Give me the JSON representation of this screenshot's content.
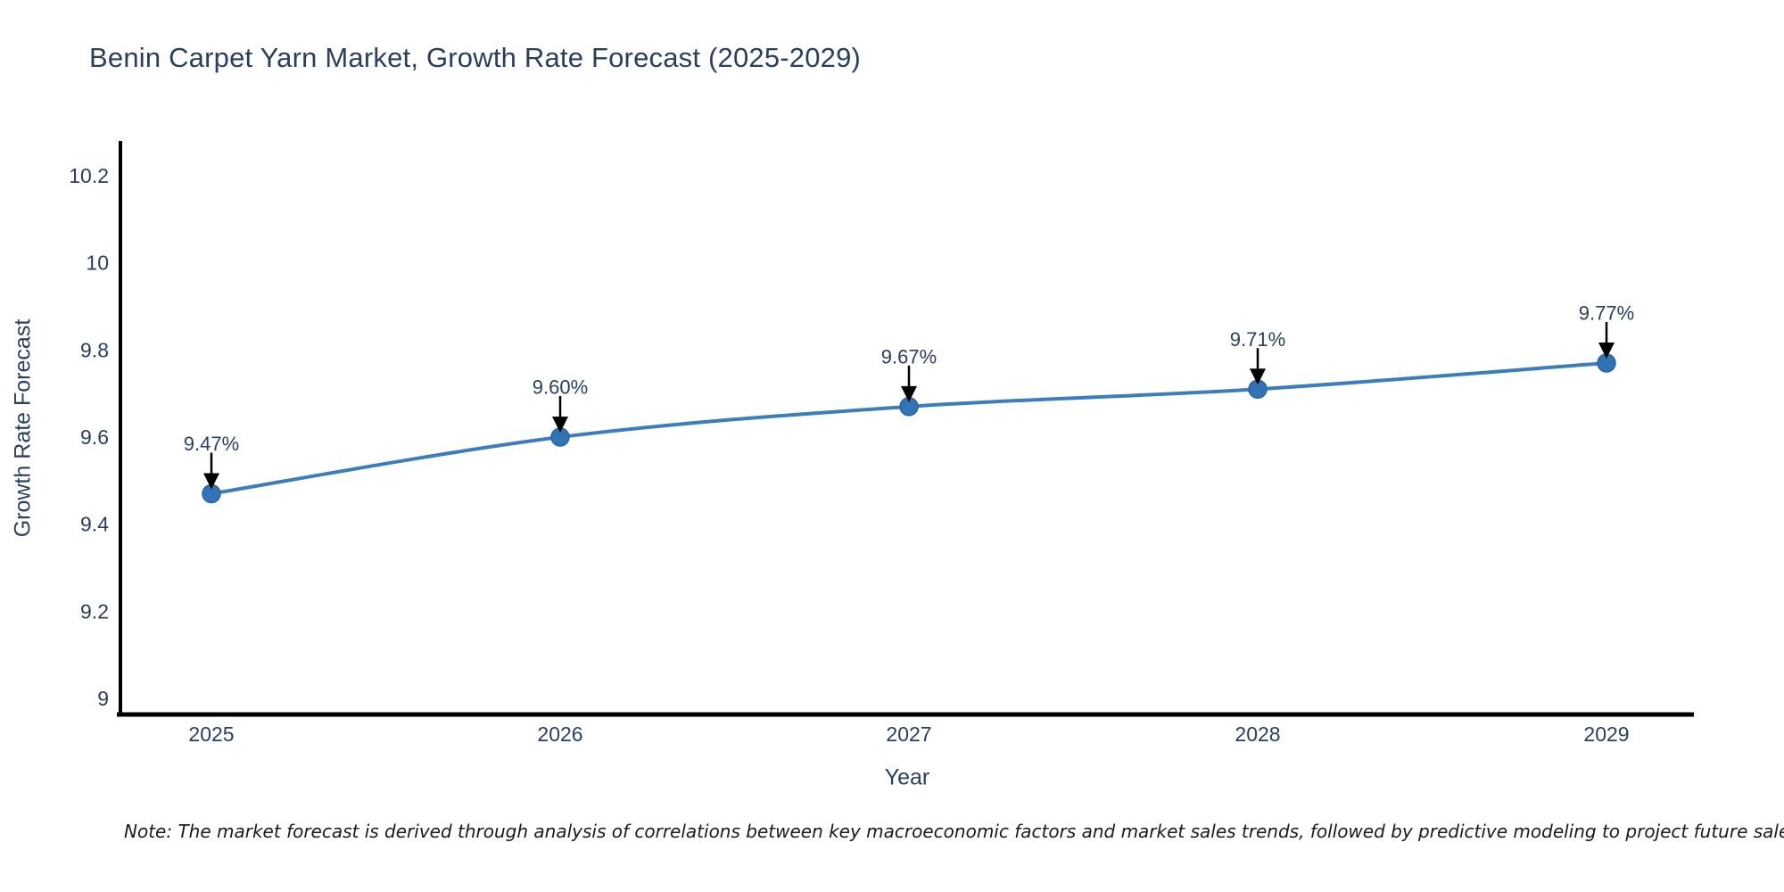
{
  "page": {
    "background": "#ffffff"
  },
  "chart_data": {
    "type": "line",
    "title": "Benin Carpet Yarn Market, Growth Rate Forecast (2025-2029)",
    "xlabel": "Year",
    "ylabel": "Growth Rate Forecast",
    "x": [
      "2025",
      "2026",
      "2027",
      "2028",
      "2029"
    ],
    "y": [
      9.47,
      9.6,
      9.67,
      9.71,
      9.77
    ],
    "point_labels": [
      "9.47%",
      "9.60%",
      "9.67%",
      "9.71%",
      "9.77%"
    ],
    "yticks": [
      9,
      9.2,
      9.4,
      9.6,
      9.8,
      10,
      10.2
    ],
    "ytick_labels": [
      "9",
      "9.2",
      "9.4",
      "9.6",
      "9.8",
      "10",
      "10.2"
    ],
    "ylim": [
      8.96,
      10.28
    ],
    "grid": false,
    "legend": false,
    "colors": {
      "line": "#3c7dbd",
      "marker": "#3173b5",
      "marker_edge": "#2a65a0",
      "axis": "#000000",
      "text": "#2a3f5f",
      "annotation_text": "#2a3f5f",
      "annotation_arrow": "#000000",
      "note_text": "#1a1a1a"
    },
    "note": "Note: The market forecast is derived through analysis of correlations between key macroeconomic factors and market sales trends, followed by predictive modeling to project future sales."
  }
}
